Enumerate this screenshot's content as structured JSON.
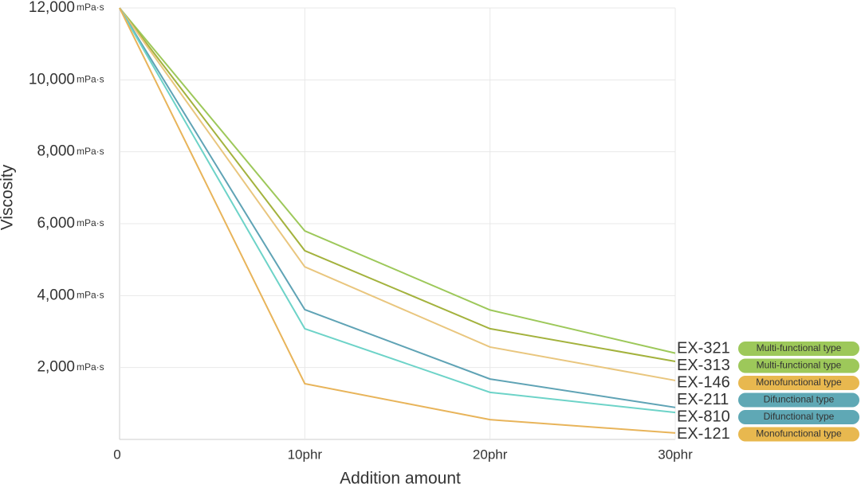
{
  "chart_data": {
    "type": "line",
    "x_label": "Addition amount",
    "y_label": "Viscosity",
    "y_unit": "mPa·s",
    "x": [
      0,
      10,
      20,
      30
    ],
    "xlim": [
      0,
      30
    ],
    "xticks": [
      0,
      {
        "value": 10,
        "label": "10phr"
      },
      {
        "value": 20,
        "label": "20phr"
      },
      {
        "value": 30,
        "label": "30phr"
      }
    ],
    "ylim": [
      0,
      12000
    ],
    "yticks": [
      {
        "value": 2000,
        "label": "2,000"
      },
      {
        "value": 4000,
        "label": "4,000"
      },
      {
        "value": 6000,
        "label": "6,000"
      },
      {
        "value": 8000,
        "label": "8,000"
      },
      {
        "value": 10000,
        "label": "10,000"
      },
      {
        "value": 12000,
        "label": "12,000"
      }
    ],
    "grid": true,
    "series": [
      {
        "name": "EX-321",
        "type_label": "Multi-functional type",
        "color": "#9dc85a",
        "badge_color": "#9dc85a",
        "values": [
          12000,
          5800,
          3600,
          2400
        ]
      },
      {
        "name": "EX-313",
        "type_label": "Multi-functional type",
        "color": "#a3b23d",
        "badge_color": "#9dc85a",
        "values": [
          12000,
          5250,
          3080,
          2170
        ]
      },
      {
        "name": "EX-146",
        "type_label": "Monofunctional type",
        "color": "#e9c67e",
        "badge_color": "#e8b84f",
        "values": [
          12000,
          4800,
          2570,
          1640
        ]
      },
      {
        "name": "EX-211",
        "type_label": "Difunctional type",
        "color": "#5fa3b5",
        "badge_color": "#5fa8b5",
        "values": [
          12000,
          3610,
          1680,
          890
        ]
      },
      {
        "name": "EX-810",
        "type_label": "Difunctional type",
        "color": "#6dd3c8",
        "badge_color": "#5fa8b5",
        "values": [
          12000,
          3080,
          1310,
          750
        ]
      },
      {
        "name": "EX-121",
        "type_label": "Monofunctional type",
        "color": "#e8b45a",
        "badge_color": "#e8b84f",
        "values": [
          12000,
          1550,
          550,
          180
        ]
      }
    ]
  }
}
